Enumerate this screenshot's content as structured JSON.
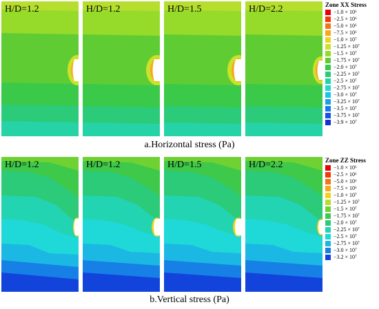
{
  "row_a": {
    "panels": [
      {
        "label": "H/D=1.2"
      },
      {
        "label": "H/D=1.2"
      },
      {
        "label": "H/D=1.5"
      },
      {
        "label": "H/D=2.2"
      }
    ],
    "caption": "a.Horizontal stress (Pa)",
    "legend": {
      "title": "Zone XX Stress",
      "levels": [
        {
          "value": "−1.0 × 10⁶",
          "color": "#e8000b"
        },
        {
          "value": "−2.5 × 10⁶",
          "color": "#f03a0a"
        },
        {
          "value": "−5.0 × 10⁶",
          "color": "#f57512"
        },
        {
          "value": "−7.5 × 10⁶",
          "color": "#f5a81a"
        },
        {
          "value": "−1.0 × 10⁷",
          "color": "#f2d21f"
        },
        {
          "value": "−1.25 × 10⁷",
          "color": "#cde02a"
        },
        {
          "value": "−1.5 × 10⁷",
          "color": "#96da2a"
        },
        {
          "value": "−1.75 × 10⁷",
          "color": "#5fcc34"
        },
        {
          "value": "−2.0 × 10⁷",
          "color": "#3bc94a"
        },
        {
          "value": "−2.25 × 10⁷",
          "color": "#2ccb79"
        },
        {
          "value": "−2.5 × 10⁷",
          "color": "#25d3a6"
        },
        {
          "value": "−2.75 × 10⁷",
          "color": "#1fd8cf"
        },
        {
          "value": "−3.0 × 10⁷",
          "color": "#1bc4e3"
        },
        {
          "value": "−3.25 × 10⁷",
          "color": "#17a2e8"
        },
        {
          "value": "−3.5 × 10⁷",
          "color": "#157be6"
        },
        {
          "value": "−3.75 × 10⁷",
          "color": "#1454e0"
        },
        {
          "value": "−3.9 × 10⁷",
          "color": "#1230d8"
        }
      ]
    }
  },
  "row_b": {
    "panels": [
      {
        "label": "H/D=1.2"
      },
      {
        "label": "H/D=1.2"
      },
      {
        "label": "H/D=1.5"
      },
      {
        "label": "H/D=2.2"
      }
    ],
    "caption": "b.Vertical stress (Pa)",
    "legend": {
      "title": "Zone ZZ Stress",
      "levels": [
        {
          "value": "−1.0 × 10⁶",
          "color": "#e8000b"
        },
        {
          "value": "−2.5 × 10⁶",
          "color": "#f03a0a"
        },
        {
          "value": "−5.0 × 10⁶",
          "color": "#f57512"
        },
        {
          "value": "−7.5 × 10⁶",
          "color": "#f5a81a"
        },
        {
          "value": "−1.0 × 10⁷",
          "color": "#f2d21f"
        },
        {
          "value": "−1.25 × 10⁷",
          "color": "#b8de2a"
        },
        {
          "value": "−1.5 × 10⁷",
          "color": "#6fd232"
        },
        {
          "value": "−1.75 × 10⁷",
          "color": "#3ec94a"
        },
        {
          "value": "−2.0 × 10⁷",
          "color": "#2ccb79"
        },
        {
          "value": "−2.25 × 10⁷",
          "color": "#23d4b2"
        },
        {
          "value": "−2.5 × 10⁷",
          "color": "#1fd8d8"
        },
        {
          "value": "−2.75 × 10⁷",
          "color": "#1bb8e4"
        },
        {
          "value": "−3.0 × 10⁷",
          "color": "#1680e6"
        },
        {
          "value": "−3.2 × 10⁷",
          "color": "#1244dc"
        }
      ]
    }
  }
}
